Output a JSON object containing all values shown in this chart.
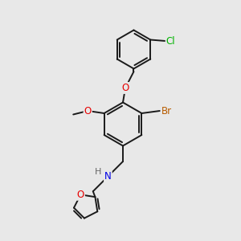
{
  "bg_color": "#e8e8e8",
  "bond_color": "#1a1a1a",
  "bond_width": 1.4,
  "atom_colors": {
    "O": "#e60000",
    "N": "#0000e6",
    "Br": "#b85c00",
    "Cl": "#00b300",
    "H": "#666666",
    "C": "#1a1a1a"
  },
  "figsize": [
    3.0,
    3.0
  ],
  "dpi": 100
}
